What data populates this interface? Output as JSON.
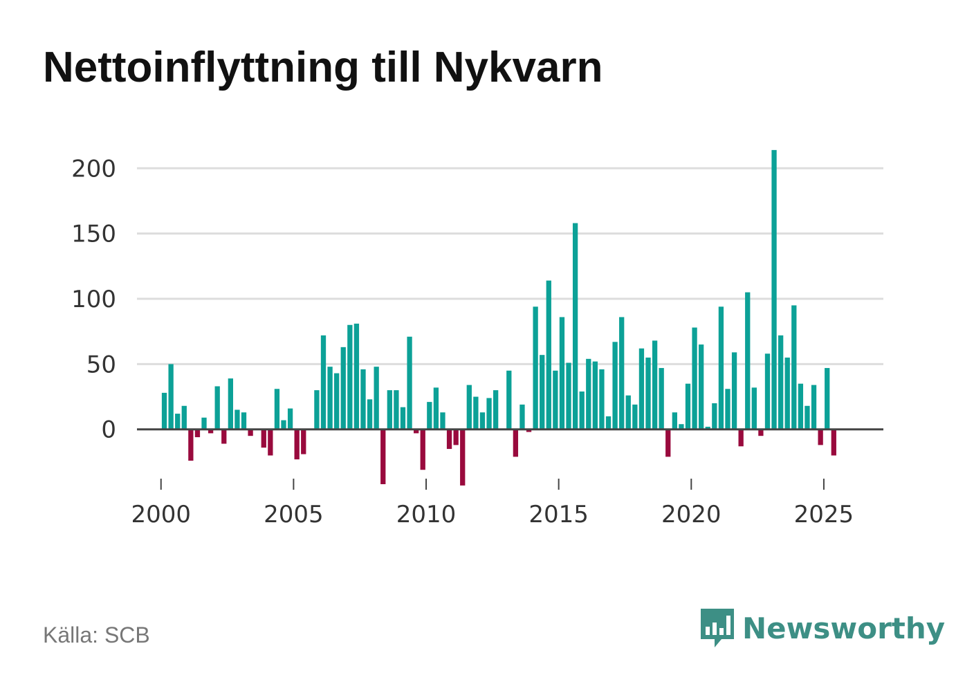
{
  "title": "Nettoinflyttning till Nykvarn",
  "source": "Källa: SCB",
  "brand": {
    "name": "Newsworthy",
    "icon": "newsworthy-logo-icon"
  },
  "colors": {
    "positive": "#0ca197",
    "negative": "#990a3d",
    "grid": "#dddddd",
    "axis": "#444444",
    "text": "#333333",
    "brand": "#3d8f85"
  },
  "chart_data": {
    "type": "bar",
    "title": "Nettoinflyttning till Nykvarn",
    "xlabel": "",
    "ylabel": "",
    "ylim": [
      -42,
      215
    ],
    "xlim": [
      1999.25,
      2026.75
    ],
    "x_ticks": [
      2000,
      2005,
      2010,
      2015,
      2020,
      2025
    ],
    "y_ticks": [
      0,
      50,
      100,
      150,
      200
    ],
    "x_tick_labels": [
      "2000",
      "2005",
      "2010",
      "2015",
      "2020",
      "2025"
    ],
    "y_tick_labels": [
      "0",
      "50",
      "100",
      "150",
      "200"
    ],
    "grid": true,
    "frequency": "quarterly",
    "start": "2000 Q1",
    "values": [
      28,
      50,
      12,
      18,
      -24,
      -6,
      9,
      -3,
      33,
      -11,
      39,
      15,
      13,
      -5,
      0,
      -14,
      -20,
      31,
      7,
      16,
      -23,
      -19,
      0,
      30,
      72,
      48,
      43,
      63,
      80,
      81,
      46,
      23,
      48,
      -42,
      30,
      30,
      17,
      71,
      -3,
      -31,
      21,
      32,
      13,
      -15,
      -12,
      -43,
      34,
      25,
      13,
      24,
      30,
      0,
      45,
      -21,
      19,
      -2,
      94,
      57,
      114,
      45,
      86,
      51,
      158,
      29,
      54,
      52,
      46,
      10,
      67,
      86,
      26,
      19,
      62,
      55,
      68,
      47,
      -21,
      13,
      4,
      35,
      78,
      65,
      2,
      20,
      94,
      31,
      59,
      -13,
      105,
      32,
      -5,
      58,
      214,
      72,
      55,
      95,
      35,
      18,
      34,
      -12,
      47,
      -20
    ]
  }
}
